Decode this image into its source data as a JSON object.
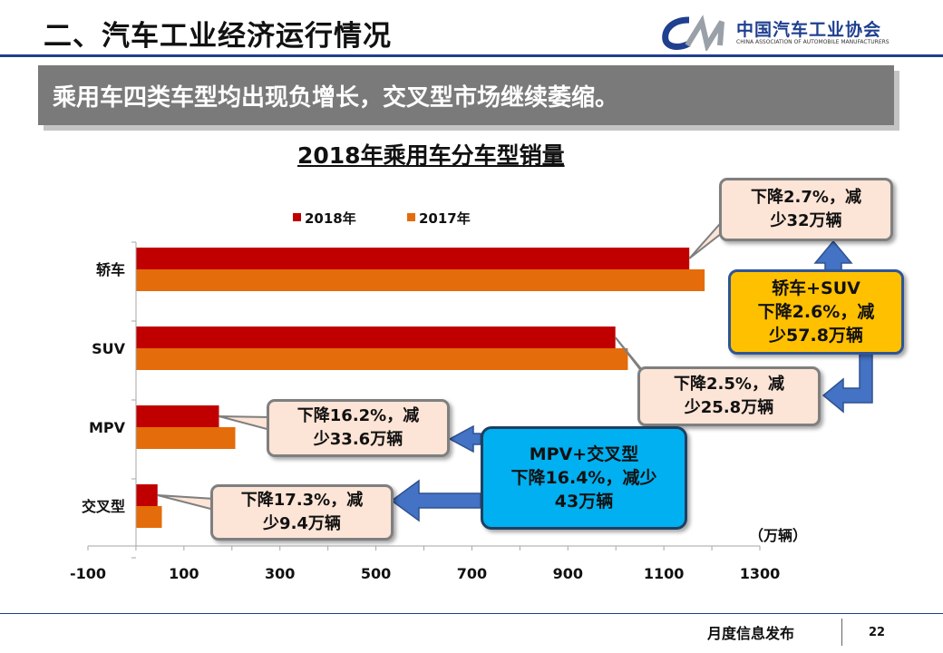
{
  "slide": {
    "title": "二、汽车工业经济运行情况",
    "subtitle": "乘用车四类车型均出现负增长，交叉型市场继续萎缩。"
  },
  "logo": {
    "cn": "中国汽车工业协会",
    "en": "CHINA ASSOCIATION OF AUTOMOBILE MANUFACTURERS",
    "colors": {
      "blue": "#1f3f8f",
      "gray": "#9aa0a8"
    }
  },
  "chart_data": {
    "type": "bar",
    "orientation": "horizontal",
    "title": "2018年乘用车分车型销量",
    "categories": [
      "轿车",
      "SUV",
      "MPV",
      "交叉型"
    ],
    "series": [
      {
        "name": "2018年",
        "color": "#c00000",
        "values": [
          1153,
          999,
          173,
          45
        ]
      },
      {
        "name": "2017年",
        "color": "#e46c0a",
        "values": [
          1185,
          1025,
          207,
          54
        ]
      }
    ],
    "xlim": [
      -100,
      1300
    ],
    "xticks": [
      "-100",
      "100",
      "300",
      "500",
      "700",
      "900",
      "1100",
      "1300"
    ],
    "unit": "（万辆）",
    "legend": "top",
    "grid": false,
    "annotations": [
      {
        "id": "sedan",
        "text": [
          "下降2.7%，减",
          "少32万辆"
        ]
      },
      {
        "id": "sedan-suv",
        "text": [
          "轿车+SUV",
          "下降2.6%，减",
          "少57.8万辆"
        ]
      },
      {
        "id": "suv",
        "text": [
          "下降2.5%，减",
          "少25.8万辆"
        ]
      },
      {
        "id": "mpv",
        "text": [
          "下降16.2%，减",
          "少33.6万辆"
        ]
      },
      {
        "id": "mpv-cross",
        "text": [
          "MPV+交叉型",
          "下降16.4%，减少",
          "43万辆"
        ]
      },
      {
        "id": "cross",
        "text": [
          "下降17.3%，减",
          "少9.4万辆"
        ]
      }
    ]
  },
  "footer": {
    "label": "月度信息发布",
    "page": "22"
  }
}
